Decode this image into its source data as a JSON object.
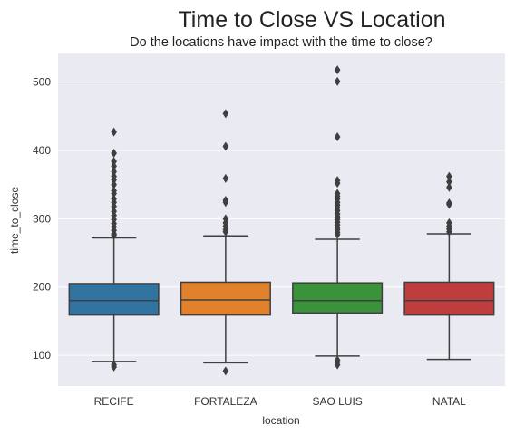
{
  "chart_data": {
    "type": "box",
    "title": "Time to Close VS Location",
    "subtitle": "Do the locations have impact with the time to close?",
    "xlabel": "location",
    "ylabel": "time_to_close",
    "ylim": [
      55,
      542
    ],
    "yticks": [
      100,
      200,
      300,
      400,
      500
    ],
    "grid": true,
    "series": [
      {
        "name": "RECIFE",
        "color": "#3274a1",
        "whisker_low": 91,
        "q1": 159,
        "median": 180,
        "q3": 205,
        "whisker_high": 272,
        "outliers": [
          427,
          396,
          384,
          377,
          369,
          362,
          357,
          350,
          341,
          337,
          329,
          324,
          318,
          311,
          305,
          299,
          293,
          288,
          283,
          278,
          276,
          86,
          83
        ]
      },
      {
        "name": "FORTALEZA",
        "color": "#e1812c",
        "whisker_low": 89,
        "q1": 159,
        "median": 181,
        "q3": 207,
        "whisker_high": 275,
        "outliers": [
          454,
          406,
          359,
          327,
          324,
          300,
          294,
          289,
          284,
          281,
          77
        ]
      },
      {
        "name": "SAO LUIS",
        "color": "#3a923a",
        "whisker_low": 99,
        "q1": 162,
        "median": 180,
        "q3": 206,
        "whisker_high": 270,
        "outliers": [
          518,
          501,
          420,
          356,
          352,
          337,
          333,
          329,
          324,
          320,
          316,
          312,
          307,
          303,
          299,
          295,
          291,
          287,
          284,
          280,
          277,
          93,
          90,
          86
        ]
      },
      {
        "name": "NATAL",
        "color": "#c03d3e",
        "whisker_low": 94,
        "q1": 159,
        "median": 180,
        "q3": 207,
        "whisker_high": 278,
        "outliers": [
          362,
          354,
          346,
          323,
          321,
          294,
          289,
          285,
          281
        ]
      }
    ]
  },
  "colors": {
    "plot_background": "#eaeaf2",
    "grid": "#ffffff",
    "line": "#3f3f3f"
  }
}
